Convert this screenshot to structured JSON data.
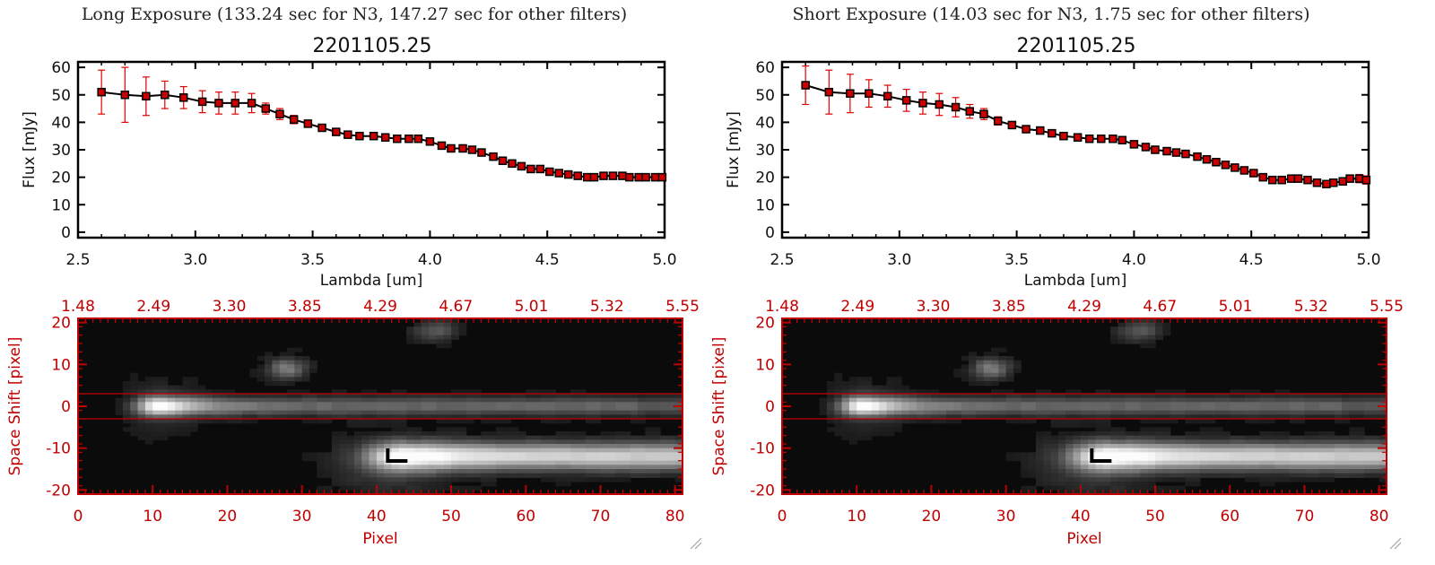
{
  "panels": [
    {
      "title": "Long Exposure (133.24 sec for N3, 147.27 sec for other filters)",
      "chart_data": [
        {
          "type": "line",
          "title": "2201105.25",
          "xlabel": "Lambda [um]",
          "ylabel": "Flux [mJy]",
          "xlim": [
            2.5,
            5.0
          ],
          "ylim": [
            -2,
            62
          ],
          "x_ticks": [
            "2.5",
            "3.0",
            "3.5",
            "4.0",
            "4.5",
            "5.0"
          ],
          "y_ticks": [
            "0",
            "10",
            "20",
            "30",
            "40",
            "50",
            "60"
          ],
          "x": [
            2.6,
            2.7,
            2.79,
            2.87,
            2.95,
            3.03,
            3.1,
            3.17,
            3.24,
            3.3,
            3.36,
            3.42,
            3.48,
            3.54,
            3.6,
            3.65,
            3.7,
            3.76,
            3.81,
            3.86,
            3.91,
            3.95,
            4.0,
            4.05,
            4.09,
            4.14,
            4.18,
            4.22,
            4.27,
            4.31,
            4.35,
            4.39,
            4.43,
            4.47,
            4.51,
            4.55,
            4.59,
            4.63,
            4.67,
            4.7,
            4.74,
            4.78,
            4.82,
            4.85,
            4.89,
            4.92,
            4.96,
            4.99
          ],
          "y": [
            51,
            50,
            49.5,
            50,
            49,
            47.5,
            47,
            47,
            47,
            45,
            43,
            41,
            39.5,
            38,
            36.5,
            35.5,
            35,
            35,
            34.5,
            34,
            34,
            34,
            33,
            31.5,
            30.5,
            30.5,
            30,
            29,
            27.5,
            26,
            25,
            24,
            23,
            23,
            22,
            21.5,
            21,
            20.5,
            20,
            20,
            20.5,
            20.5,
            20.5,
            20,
            20,
            20,
            20,
            20
          ],
          "yerr": [
            8,
            10,
            7,
            5,
            4,
            4,
            4,
            4,
            3.5,
            2,
            2,
            1.5,
            1,
            1,
            1,
            0.8,
            0.8,
            0.8,
            0.8,
            0.8,
            0.8,
            0.8,
            0.8,
            0.8,
            0.8,
            0.8,
            0.8,
            0.8,
            0.8,
            0.8,
            0.8,
            0.8,
            0.8,
            0.8,
            0.8,
            0.8,
            0.8,
            0.8,
            0.8,
            0.8,
            0.8,
            0.8,
            0.8,
            0.8,
            0.8,
            1,
            1,
            1.2
          ]
        },
        {
          "type": "heatmap",
          "xlabel": "Pixel",
          "ylabel": "Space Shift [pixel]",
          "xlim": [
            0,
            81
          ],
          "ylim": [
            -21,
            21
          ],
          "x_ticks": [
            "0",
            "10",
            "20",
            "30",
            "40",
            "50",
            "60",
            "70",
            "80"
          ],
          "y_ticks": [
            "-20",
            "-10",
            "0",
            "10",
            "20"
          ],
          "top_ticks": [
            "1.48",
            "2.49",
            "3.30",
            "3.85",
            "4.29",
            "4.67",
            "5.01",
            "5.32",
            "5.55"
          ],
          "aperture_lines": [
            3,
            -3
          ],
          "sources": [
            {
              "name": "target",
              "x_center": 11,
              "y_center": 0,
              "peak": 1.0
            },
            {
              "name": "secondary",
              "x_center": 45,
              "y_center": -12,
              "peak": 0.95
            },
            {
              "name": "blob",
              "x_center": 28,
              "y_center": 9,
              "peak": 0.45
            }
          ],
          "marker": {
            "x": 41.5,
            "y": -12
          }
        }
      ]
    },
    {
      "title": "Short Exposure (14.03 sec for N3, 1.75 sec for other filters)",
      "chart_data": [
        {
          "type": "line",
          "title": "2201105.25",
          "xlabel": "Lambda [um]",
          "ylabel": "Flux [mJy]",
          "xlim": [
            2.5,
            5.0
          ],
          "ylim": [
            -2,
            62
          ],
          "x_ticks": [
            "2.5",
            "3.0",
            "3.5",
            "4.0",
            "4.5",
            "5.0"
          ],
          "y_ticks": [
            "0",
            "10",
            "20",
            "30",
            "40",
            "50",
            "60"
          ],
          "x": [
            2.6,
            2.7,
            2.79,
            2.87,
            2.95,
            3.03,
            3.1,
            3.17,
            3.24,
            3.3,
            3.36,
            3.42,
            3.48,
            3.54,
            3.6,
            3.65,
            3.7,
            3.76,
            3.81,
            3.86,
            3.91,
            3.95,
            4.0,
            4.05,
            4.09,
            4.14,
            4.18,
            4.22,
            4.27,
            4.31,
            4.35,
            4.39,
            4.43,
            4.47,
            4.51,
            4.55,
            4.59,
            4.63,
            4.67,
            4.7,
            4.74,
            4.78,
            4.82,
            4.85,
            4.89,
            4.92,
            4.96,
            4.99
          ],
          "y": [
            53.5,
            51,
            50.5,
            50.5,
            49.5,
            48,
            47,
            46.5,
            45.5,
            44,
            43,
            40.5,
            39,
            37.5,
            37,
            36,
            35,
            34.5,
            34,
            34,
            34,
            33.5,
            32,
            31,
            30,
            29.5,
            29,
            28.5,
            27.5,
            26.5,
            25.5,
            24.5,
            23.5,
            22.5,
            21.5,
            20,
            19,
            19,
            19.5,
            19.5,
            19,
            18,
            17.5,
            18,
            18.5,
            19.5,
            19.5,
            19
          ],
          "yerr": [
            7,
            8,
            7,
            5,
            4,
            4,
            4,
            4,
            3.5,
            2.5,
            2,
            1.5,
            1,
            1,
            1,
            0.8,
            0.8,
            0.8,
            0.8,
            0.8,
            0.8,
            0.8,
            0.8,
            0.8,
            0.8,
            0.8,
            0.8,
            0.8,
            0.8,
            0.8,
            0.8,
            0.8,
            0.8,
            0.8,
            0.8,
            0.8,
            0.8,
            0.8,
            0.8,
            0.8,
            0.8,
            0.8,
            0.8,
            1,
            1,
            1.2,
            1.5,
            1.5
          ]
        },
        {
          "type": "heatmap",
          "xlabel": "Pixel",
          "ylabel": "Space Shift [pixel]",
          "xlim": [
            0,
            81
          ],
          "ylim": [
            -21,
            21
          ],
          "x_ticks": [
            "0",
            "10",
            "20",
            "30",
            "40",
            "50",
            "60",
            "70",
            "80"
          ],
          "y_ticks": [
            "-20",
            "-10",
            "0",
            "10",
            "20"
          ],
          "top_ticks": [
            "1.48",
            "2.49",
            "3.30",
            "3.85",
            "4.29",
            "4.67",
            "5.01",
            "5.32",
            "5.55"
          ],
          "aperture_lines": [
            3,
            -3
          ],
          "sources": [
            {
              "name": "target",
              "x_center": 11,
              "y_center": 0,
              "peak": 1.0
            },
            {
              "name": "secondary",
              "x_center": 45,
              "y_center": -12,
              "peak": 0.95
            },
            {
              "name": "blob",
              "x_center": 28,
              "y_center": 9,
              "peak": 0.45
            }
          ],
          "marker": {
            "x": 41.5,
            "y": -12
          }
        }
      ]
    }
  ],
  "colors": {
    "axis": "#000000",
    "image_axis": "#c00000",
    "error_bar": "#e00000",
    "marker_fill": "#cc0000"
  }
}
